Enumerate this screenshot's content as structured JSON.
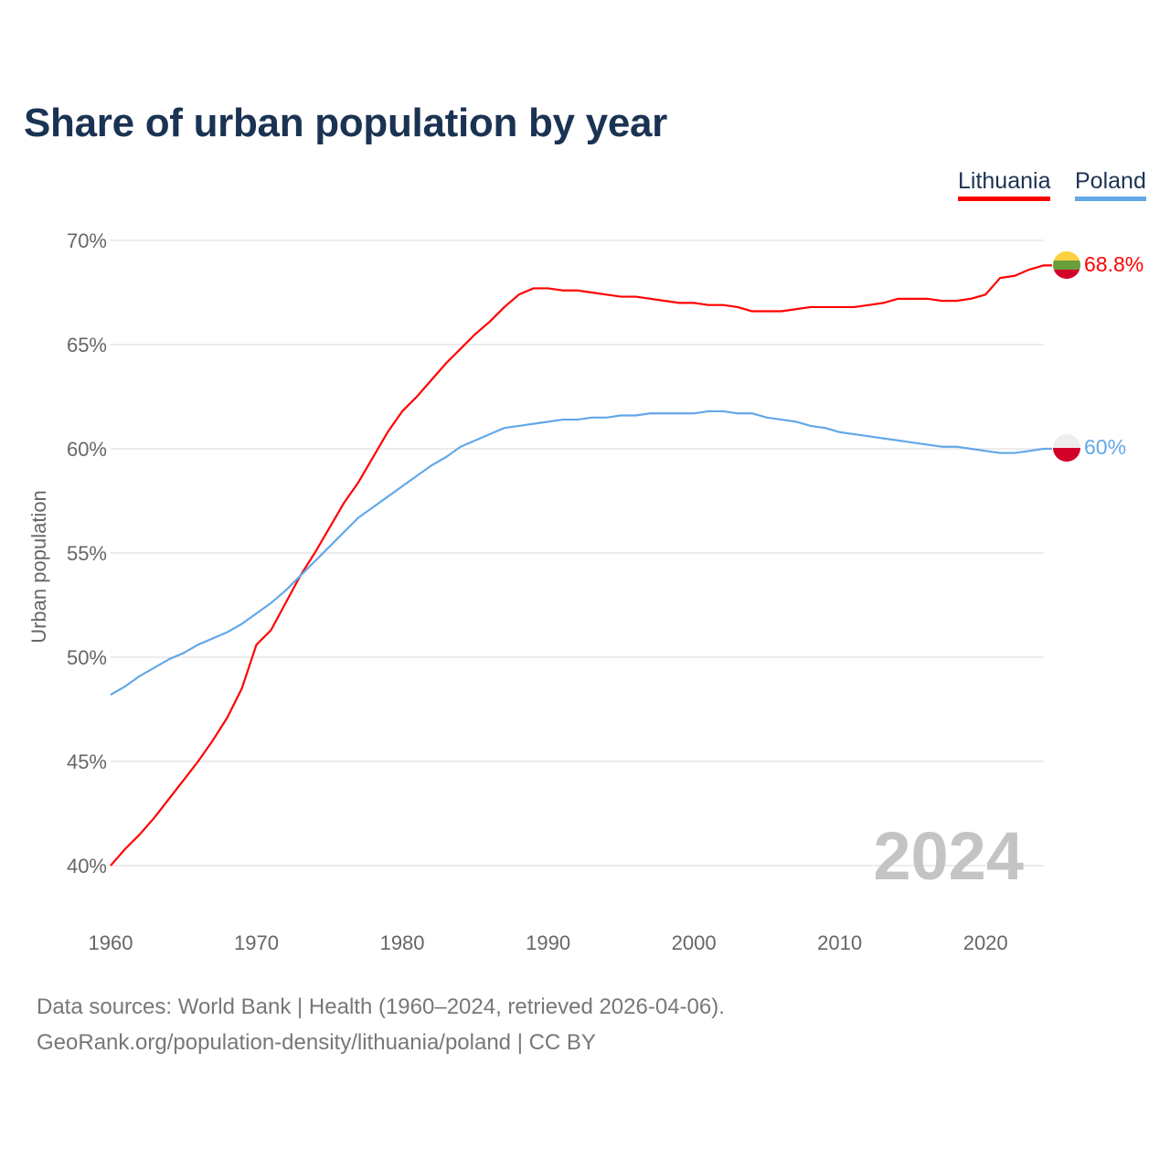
{
  "chart_data": {
    "type": "line",
    "title": "Share of urban population by year",
    "ylabel": "Urban population",
    "xlabel": "",
    "xlim": [
      1960,
      2024
    ],
    "ylim": [
      40,
      70
    ],
    "x_ticks": [
      1960,
      1970,
      1980,
      1990,
      2000,
      2010,
      2020
    ],
    "y_ticks": [
      "40%",
      "45%",
      "50%",
      "55%",
      "60%",
      "65%",
      "70%"
    ],
    "y_tick_values": [
      40,
      45,
      50,
      55,
      60,
      65,
      70
    ],
    "grid": true,
    "legend_position": "top-right",
    "year_watermark": "2024",
    "x": [
      1960,
      1961,
      1962,
      1963,
      1964,
      1965,
      1966,
      1967,
      1968,
      1969,
      1970,
      1971,
      1972,
      1973,
      1974,
      1975,
      1976,
      1977,
      1978,
      1979,
      1980,
      1981,
      1982,
      1983,
      1984,
      1985,
      1986,
      1987,
      1988,
      1989,
      1990,
      1991,
      1992,
      1993,
      1994,
      1995,
      1996,
      1997,
      1998,
      1999,
      2000,
      2001,
      2002,
      2003,
      2004,
      2005,
      2006,
      2007,
      2008,
      2009,
      2010,
      2011,
      2012,
      2013,
      2014,
      2015,
      2016,
      2017,
      2018,
      2019,
      2020,
      2021,
      2022,
      2023,
      2024
    ],
    "series": [
      {
        "name": "Lithuania",
        "color": "#ff0000",
        "end_label": "68.8%",
        "values": [
          40.0,
          40.8,
          41.5,
          42.3,
          43.2,
          44.1,
          45.0,
          46.0,
          47.1,
          48.5,
          50.6,
          51.3,
          52.6,
          53.9,
          55.0,
          56.2,
          57.4,
          58.4,
          59.6,
          60.8,
          61.8,
          62.5,
          63.3,
          64.1,
          64.8,
          65.5,
          66.1,
          66.8,
          67.4,
          67.7,
          67.7,
          67.6,
          67.6,
          67.5,
          67.4,
          67.3,
          67.3,
          67.2,
          67.1,
          67.0,
          67.0,
          66.9,
          66.9,
          66.8,
          66.6,
          66.6,
          66.6,
          66.7,
          66.8,
          66.8,
          66.8,
          66.8,
          66.9,
          67.0,
          67.2,
          67.2,
          67.2,
          67.1,
          67.1,
          67.2,
          67.4,
          68.2,
          68.3,
          68.6,
          68.8
        ]
      },
      {
        "name": "Poland",
        "color": "#62a8e8",
        "end_label": "60%",
        "values": [
          48.2,
          48.6,
          49.1,
          49.5,
          49.9,
          50.2,
          50.6,
          50.9,
          51.2,
          51.6,
          52.1,
          52.6,
          53.2,
          53.9,
          54.6,
          55.3,
          56.0,
          56.7,
          57.2,
          57.7,
          58.2,
          58.7,
          59.2,
          59.6,
          60.1,
          60.4,
          60.7,
          61.0,
          61.1,
          61.2,
          61.3,
          61.4,
          61.4,
          61.5,
          61.5,
          61.6,
          61.6,
          61.7,
          61.7,
          61.7,
          61.7,
          61.8,
          61.8,
          61.7,
          61.7,
          61.5,
          61.4,
          61.3,
          61.1,
          61.0,
          60.8,
          60.7,
          60.6,
          60.5,
          60.4,
          60.3,
          60.2,
          60.1,
          60.1,
          60.0,
          59.9,
          59.8,
          59.8,
          59.9,
          60.0
        ]
      }
    ]
  },
  "legend": {
    "lithuania": "Lithuania",
    "poland": "Poland"
  },
  "sources": {
    "line1": "Data sources: World Bank | Health (1960–2024, retrieved 2026-04-06).",
    "line2": "GeoRank.org/population-density/lithuania/poland | CC BY"
  }
}
